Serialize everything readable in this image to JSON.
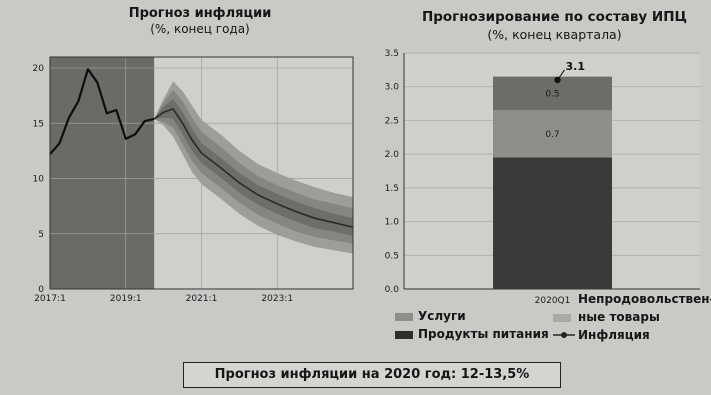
{
  "chart_data": [
    {
      "type": "line",
      "title": "Прогноз инфляции",
      "subtitle": "(%, конец года)",
      "x_ticks": [
        "2017:1",
        "2019:1",
        "2021:1",
        "2023:1"
      ],
      "y_ticks": [
        "0",
        "5",
        "10",
        "15",
        "20"
      ],
      "ylim": [
        0,
        21
      ],
      "xlim": [
        2017.0,
        2025.0
      ],
      "history_shaded_until": 2019.75,
      "history": {
        "x": [
          2017.0,
          2017.25,
          2017.5,
          2017.75,
          2018.0,
          2018.25,
          2018.5,
          2018.75,
          2019.0,
          2019.25,
          2019.5,
          2019.75
        ],
        "y": [
          12.2,
          13.2,
          15.5,
          17.0,
          19.9,
          18.7,
          15.9,
          16.2,
          13.6,
          14.0,
          15.2,
          15.4
        ]
      },
      "forecast": {
        "x": [
          2019.75,
          2020.0,
          2020.25,
          2020.5,
          2020.75,
          2021.0,
          2021.5,
          2022.0,
          2022.5,
          2023.0,
          2023.5,
          2024.0,
          2024.5,
          2025.0
        ],
        "median": [
          15.4,
          16.0,
          16.3,
          15.0,
          13.5,
          12.3,
          11.0,
          9.6,
          8.5,
          7.7,
          7.0,
          6.4,
          6.0,
          5.6
        ],
        "bands": [
          {
            "lower": [
              15.4,
              14.8,
              13.8,
              12.2,
              10.6,
              9.5,
              8.2,
              6.8,
              5.7,
              4.9,
              4.3,
              3.8,
              3.5,
              3.2
            ],
            "upper": [
              15.4,
              17.2,
              18.8,
              17.9,
              16.6,
              15.3,
              14.0,
              12.5,
              11.3,
              10.5,
              9.8,
              9.2,
              8.7,
              8.3
            ]
          },
          {
            "lower": [
              15.4,
              15.1,
              14.6,
              13.1,
              11.6,
              10.5,
              9.2,
              7.8,
              6.7,
              5.9,
              5.2,
              4.7,
              4.4,
              4.1
            ],
            "upper": [
              15.4,
              16.9,
              18.0,
              17.0,
              15.5,
              14.2,
              12.9,
              11.4,
              10.2,
              9.4,
              8.7,
              8.1,
              7.7,
              7.3
            ]
          },
          {
            "lower": [
              15.4,
              15.5,
              15.4,
              14.0,
              12.5,
              11.4,
              10.1,
              8.7,
              7.6,
              6.8,
              6.1,
              5.5,
              5.2,
              4.8
            ],
            "upper": [
              15.4,
              16.5,
              17.2,
              16.0,
              14.5,
              13.2,
              11.9,
              10.5,
              9.4,
              8.6,
              7.9,
              7.3,
              6.8,
              6.4
            ]
          }
        ]
      }
    },
    {
      "type": "bar",
      "stacked": true,
      "title": "Прогнозирование по составу ИПЦ",
      "subtitle": "(%, конец квартала)",
      "categories": [
        "2020Q1"
      ],
      "ylim": [
        0,
        3.5
      ],
      "y_ticks": [
        "0.0",
        "0.5",
        "1.0",
        "1.5",
        "2.0",
        "2.5",
        "3.0",
        "3.5"
      ],
      "series": [
        {
          "name": "Продукты питания",
          "values": [
            1.95
          ],
          "color": "#3a3a38"
        },
        {
          "name": "Непродовольственные товары",
          "values": [
            0.7
          ],
          "color": "#8e8e8b",
          "label": "0.7"
        },
        {
          "name": "Услуги",
          "values": [
            0.5
          ],
          "color": "#6c6c69",
          "label": "0.5"
        }
      ],
      "inflation": {
        "name": "Инфляция",
        "value": 3.1,
        "label": "3.1"
      }
    }
  ],
  "legend": {
    "services": "Услуги",
    "nonfood_line1": "Непродовольствен-",
    "nonfood_line2": "ные товары",
    "food": "Продукты питания",
    "inflation": "Инфляция"
  },
  "footer": "Прогноз инфляции на 2020 год: 12-13,5%",
  "colors": {
    "history_bg": "#6a6a67",
    "band_outer": "#9d9d9a",
    "band_mid": "#858582",
    "band_inner": "#6d6d6a",
    "median_line": "#2a2a28"
  }
}
